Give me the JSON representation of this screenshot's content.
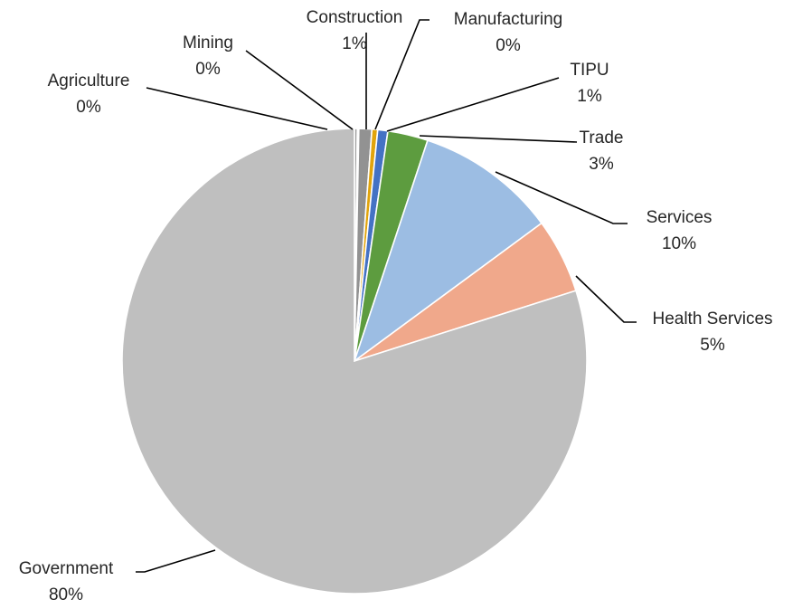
{
  "chart_data": {
    "type": "pie",
    "title": "",
    "data_labels_show_category": true,
    "data_labels_show_percent": true,
    "slices": [
      {
        "label": "Agriculture",
        "value": 0.2,
        "percent_label": "0%",
        "color": "#9a9a9a"
      },
      {
        "label": "Mining",
        "value": 0.1,
        "percent_label": "0%",
        "color": "#7a7a7a"
      },
      {
        "label": "Construction",
        "value": 0.9,
        "percent_label": "1%",
        "color": "#929292"
      },
      {
        "label": "Manufacturing",
        "value": 0.4,
        "percent_label": "0%",
        "color": "#e1a40c"
      },
      {
        "label": "TIPU",
        "value": 0.7,
        "percent_label": "1%",
        "color": "#4472c4"
      },
      {
        "label": "Trade",
        "value": 2.8,
        "percent_label": "3%",
        "color": "#5d9c3f"
      },
      {
        "label": "Services",
        "value": 9.8,
        "percent_label": "10%",
        "color": "#9cbde3"
      },
      {
        "label": "Health Services",
        "value": 5.2,
        "percent_label": "5%",
        "color": "#f0a88b"
      },
      {
        "label": "Government",
        "value": 79.9,
        "percent_label": "80%",
        "color": "#bfbfbf"
      }
    ]
  }
}
